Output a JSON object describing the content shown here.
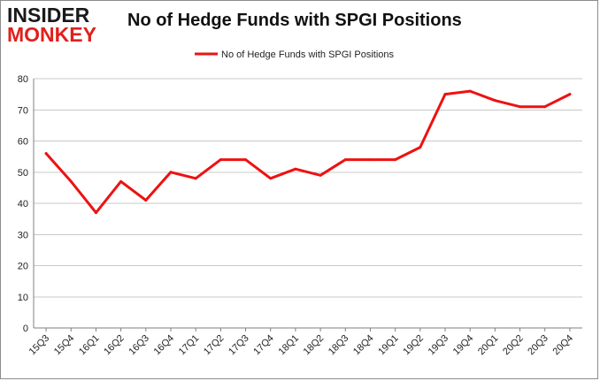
{
  "logo": {
    "line1": "INSIDER",
    "line2": "MONKEY"
  },
  "chart_data": {
    "type": "line",
    "title": "No of Hedge Funds with SPGI Positions",
    "categories": [
      "15Q3",
      "15Q4",
      "16Q1",
      "16Q2",
      "16Q3",
      "16Q4",
      "17Q1",
      "17Q2",
      "17Q3",
      "17Q4",
      "18Q1",
      "18Q2",
      "18Q3",
      "18Q4",
      "19Q1",
      "19Q2",
      "19Q3",
      "19Q4",
      "20Q1",
      "20Q2",
      "20Q3",
      "20Q4"
    ],
    "series": [
      {
        "name": "No of Hedge Funds with SPGI Positions",
        "color": "#ee1111",
        "values": [
          56,
          47,
          37,
          47,
          41,
          50,
          48,
          54,
          54,
          48,
          51,
          49,
          54,
          54,
          54,
          58,
          75,
          76,
          73,
          71,
          71,
          75
        ]
      }
    ],
    "ylim": [
      0,
      80
    ],
    "yticks": [
      0,
      10,
      20,
      30,
      40,
      50,
      60,
      70,
      80
    ],
    "grid": true,
    "legend": "top-center",
    "xlabel": "",
    "ylabel": ""
  }
}
